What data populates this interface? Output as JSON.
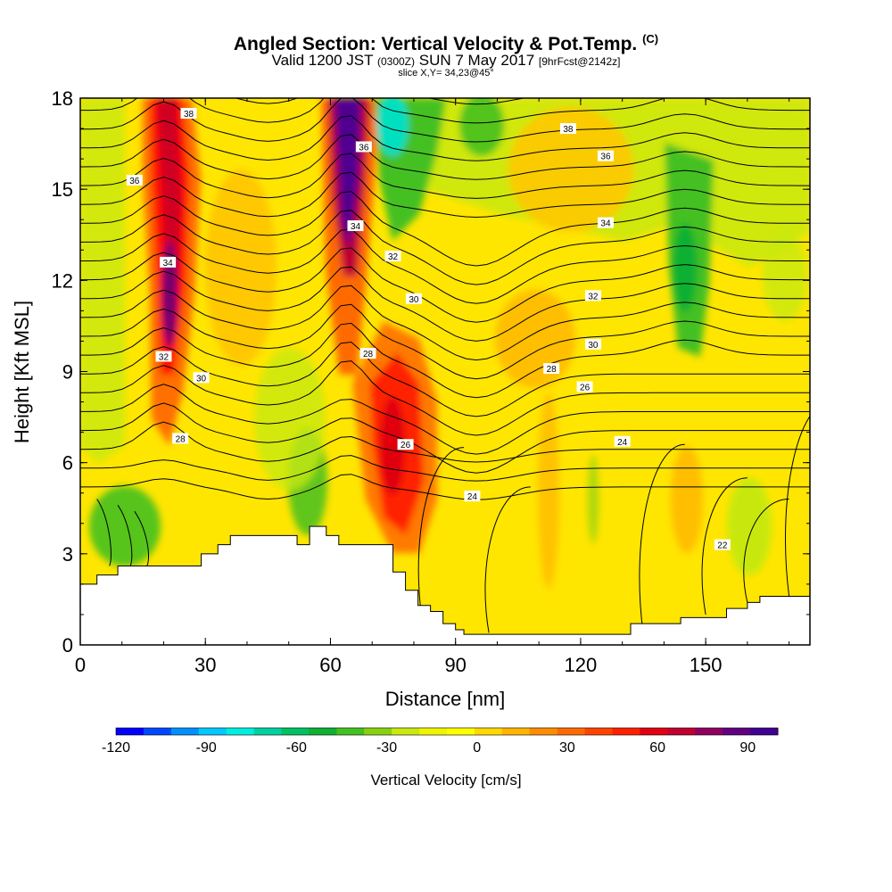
{
  "header": {
    "title": "Angled Section: Vertical Velocity & Pot.Temp.",
    "title_mark": "(C)",
    "valid_prefix": "Valid 1200 JST",
    "valid_z": "(0300Z)",
    "valid_date": "SUN 7 May 2017",
    "fcst": "[9hrFcst@2142z]",
    "slice": "slice X,Y= 34,23@45°"
  },
  "chart_data": {
    "type": "heatmap",
    "xlabel": "Distance [nm]",
    "ylabel": "Height [Kft MSL]",
    "xlim": [
      0,
      175
    ],
    "ylim": [
      0,
      18
    ],
    "xticks": [
      0,
      30,
      60,
      90,
      120,
      150
    ],
    "yticks": [
      0,
      3,
      6,
      9,
      12,
      15,
      18
    ],
    "colorbar": {
      "label": "Vertical Velocity [cm/s]",
      "range": [
        -120,
        100
      ],
      "ticks": [
        -120,
        -90,
        -60,
        -30,
        0,
        30,
        60,
        90
      ],
      "colors": [
        "#0000ff",
        "#0048ff",
        "#0090ff",
        "#00c8ff",
        "#00eee0",
        "#00d0a0",
        "#00c060",
        "#10b030",
        "#44c020",
        "#88d010",
        "#c8e810",
        "#f0f400",
        "#ffff00",
        "#ffd800",
        "#ffb400",
        "#ff8c00",
        "#ff6a00",
        "#ff4400",
        "#ff2000",
        "#e00010",
        "#c00030",
        "#900060",
        "#600080",
        "#400090"
      ]
    },
    "terrain_profile": [
      [
        0,
        2
      ],
      [
        4,
        2.3
      ],
      [
        9,
        2.6
      ],
      [
        27,
        2.6
      ],
      [
        29,
        3
      ],
      [
        33,
        3.3
      ],
      [
        36,
        3.6
      ],
      [
        49,
        3.6
      ],
      [
        52,
        3.3
      ],
      [
        55,
        3.9
      ],
      [
        59,
        3.6
      ],
      [
        62,
        3.3
      ],
      [
        73,
        3.3
      ],
      [
        75,
        2.4
      ],
      [
        78,
        1.8
      ],
      [
        81,
        1.3
      ],
      [
        84,
        1.1
      ],
      [
        87,
        0.7
      ],
      [
        90,
        0.5
      ],
      [
        92,
        0.35
      ],
      [
        130,
        0.35
      ],
      [
        132,
        0.7
      ],
      [
        142,
        0.7
      ],
      [
        144,
        0.9
      ],
      [
        152,
        0.9
      ],
      [
        155,
        1.2
      ],
      [
        160,
        1.4
      ],
      [
        163,
        1.6
      ],
      [
        175,
        1.6
      ]
    ],
    "velocity_features": [
      {
        "x": 20,
        "y": 14,
        "value": 85
      },
      {
        "x": 62,
        "y": 16,
        "value": 100
      },
      {
        "x": 76,
        "y": 7.5,
        "value": 55
      },
      {
        "x": 74,
        "y": 17,
        "value": -70
      },
      {
        "x": 144,
        "y": 12,
        "value": -40
      },
      {
        "x": 10,
        "y": 4,
        "value": -35
      },
      {
        "x": 55,
        "y": 6,
        "value": -30
      },
      {
        "x": 160,
        "y": 4.5,
        "value": -10
      }
    ],
    "contour_labels": [
      {
        "text": "38",
        "x": 26,
        "y": 17.5
      },
      {
        "text": "38",
        "x": 117,
        "y": 17
      },
      {
        "text": "36",
        "x": 13,
        "y": 15.3
      },
      {
        "text": "36",
        "x": 68,
        "y": 16.4
      },
      {
        "text": "36",
        "x": 126,
        "y": 16.1
      },
      {
        "text": "34",
        "x": 21,
        "y": 12.6
      },
      {
        "text": "34",
        "x": 66,
        "y": 13.8
      },
      {
        "text": "34",
        "x": 126,
        "y": 13.9
      },
      {
        "text": "32",
        "x": 75,
        "y": 12.8
      },
      {
        "text": "32",
        "x": 123,
        "y": 11.5
      },
      {
        "text": "32",
        "x": 20,
        "y": 9.5
      },
      {
        "text": "30",
        "x": 80,
        "y": 11.4
      },
      {
        "text": "30",
        "x": 123,
        "y": 9.9
      },
      {
        "text": "30",
        "x": 29,
        "y": 8.8
      },
      {
        "text": "28",
        "x": 69,
        "y": 9.6
      },
      {
        "text": "28",
        "x": 113,
        "y": 9.1
      },
      {
        "text": "28",
        "x": 24,
        "y": 6.8
      },
      {
        "text": "26",
        "x": 78,
        "y": 6.6
      },
      {
        "text": "26",
        "x": 121,
        "y": 8.5
      },
      {
        "text": "24",
        "x": 130,
        "y": 6.7
      },
      {
        "text": "24",
        "x": 94,
        "y": 4.9
      },
      {
        "text": "22",
        "x": 154,
        "y": 3.3
      }
    ]
  }
}
